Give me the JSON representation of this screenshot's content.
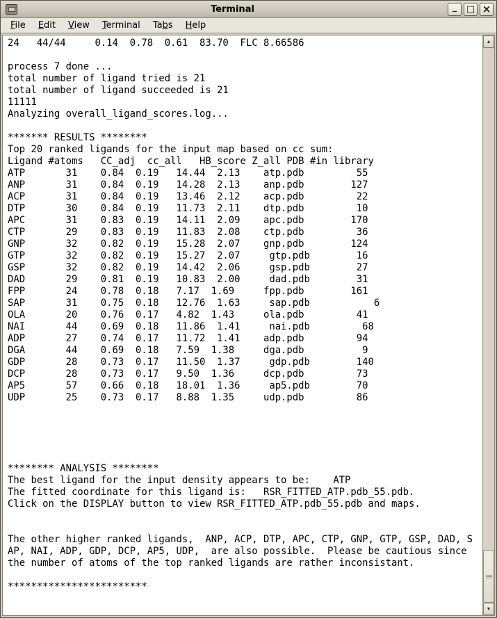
{
  "window": {
    "title": "Terminal",
    "controls": [
      {
        "name": "minimize",
        "glyph": "_"
      },
      {
        "name": "maximize",
        "glyph": "□"
      },
      {
        "name": "close",
        "glyph": "×"
      }
    ]
  },
  "menubar": {
    "items": [
      {
        "label": "File",
        "u": 0
      },
      {
        "label": "Edit",
        "u": 0
      },
      {
        "label": "View",
        "u": 0
      },
      {
        "label": "Terminal",
        "u": 0
      },
      {
        "label": "Tabs",
        "u": 2
      },
      {
        "label": "Help",
        "u": 0
      }
    ]
  },
  "scrollbar": {
    "up_glyph": "▲",
    "down_glyph": "▼"
  },
  "colors": {
    "titlebar_bg": "#c9c4b8",
    "menubar_bg": "#e8e5dc",
    "terminal_bg": "#ffffff",
    "terminal_fg": "#000000",
    "chrome": "#d0cbbf"
  },
  "terminal": {
    "lines": [
      "24   44/44     0.14  0.78  0.61  83.70  FLC 8.66586",
      "",
      "process 7 done ...",
      "total number of ligand tried is 21",
      "total number of ligand succeeded is 21",
      "11111",
      "Analyzing overall_ligand_scores.log...",
      "",
      "******* RESULTS ********",
      "Top 20 ranked ligands for the input map based on cc sum:",
      "Ligand #atoms   CC_adj  cc_all   HB_score Z_all PDB #in library",
      "ATP       31    0.84  0.19   14.44  2.13    atp.pdb         55",
      "ANP       31    0.84  0.19   14.28  2.13    anp.pdb        127",
      "ACP       31    0.84  0.19   13.46  2.12    acp.pdb         22",
      "DTP       30    0.84  0.19   11.73  2.11    dtp.pdb         10",
      "APC       31    0.83  0.19   14.11  2.09    apc.pdb        170",
      "CTP       29    0.83  0.19   11.83  2.08    ctp.pdb         36",
      "GNP       32    0.82  0.19   15.28  2.07    gnp.pdb        124",
      "GTP       32    0.82  0.19   15.27  2.07     gtp.pdb        16",
      "GSP       32    0.82  0.19   14.42  2.06     gsp.pdb        27",
      "DAD       29    0.81  0.19   10.83  2.00     dad.pdb        31",
      "FPP       24    0.78  0.18   7.17  1.69     fpp.pdb        161",
      "SAP       31    0.75  0.18   12.76  1.63     sap.pdb           6",
      "OLA       20    0.76  0.17   4.82  1.43     ola.pdb         41",
      "NAI       44    0.69  0.18   11.86  1.41     nai.pdb         68",
      "ADP       27    0.74  0.17   11.72  1.41    adp.pdb         94",
      "DGA       44    0.69  0.18   7.59  1.38     dga.pdb          9",
      "GDP       28    0.73  0.17   11.50  1.37     gdp.pdb        140",
      "DCP       28    0.73  0.17   9.50  1.36     dcp.pdb         73",
      "AP5       57    0.66  0.18   18.01  1.36     ap5.pdb        70",
      "UDP       25    0.73  0.17   8.88  1.35     udp.pdb         86",
      "",
      "",
      "",
      "",
      "",
      "******** ANALYSIS ********",
      "The best ligand for the input density appears to be:    ATP",
      "The fitted coordinate for this ligand is:   RSR_FITTED_ATP.pdb_55.pdb.",
      "Click on the DISPLAY button to view RSR_FITTED_ATP.pdb_55.pdb and maps.",
      "",
      "",
      "The other higher ranked ligands,  ANP, ACP, DTP, APC, CTP, GNP, GTP, GSP, DAD, S",
      "AP, NAI, ADP, GDP, DCP, AP5, UDP,  are also possible.  Please be cautious since",
      "the number of atoms of the top ranked ligands are rather inconsistant.",
      "",
      "************************"
    ]
  },
  "results_table": {
    "title": "Top 20 ranked ligands for the input map based on cc sum:",
    "headers": [
      "Ligand",
      "#atoms",
      "CC_adj",
      "cc_all",
      "HB_score",
      "Z_all",
      "PDB",
      "#in library"
    ],
    "rows": [
      [
        "ATP",
        31,
        0.84,
        0.19,
        14.44,
        2.13,
        "atp.pdb",
        55
      ],
      [
        "ANP",
        31,
        0.84,
        0.19,
        14.28,
        2.13,
        "anp.pdb",
        127
      ],
      [
        "ACP",
        31,
        0.84,
        0.19,
        13.46,
        2.12,
        "acp.pdb",
        22
      ],
      [
        "DTP",
        30,
        0.84,
        0.19,
        11.73,
        2.11,
        "dtp.pdb",
        10
      ],
      [
        "APC",
        31,
        0.83,
        0.19,
        14.11,
        2.09,
        "apc.pdb",
        170
      ],
      [
        "CTP",
        29,
        0.83,
        0.19,
        11.83,
        2.08,
        "ctp.pdb",
        36
      ],
      [
        "GNP",
        32,
        0.82,
        0.19,
        15.28,
        2.07,
        "gnp.pdb",
        124
      ],
      [
        "GTP",
        32,
        0.82,
        0.19,
        15.27,
        2.07,
        "gtp.pdb",
        16
      ],
      [
        "GSP",
        32,
        0.82,
        0.19,
        14.42,
        2.06,
        "gsp.pdb",
        27
      ],
      [
        "DAD",
        29,
        0.81,
        0.19,
        10.83,
        2.0,
        "dad.pdb",
        31
      ],
      [
        "FPP",
        24,
        0.78,
        0.18,
        7.17,
        1.69,
        "fpp.pdb",
        161
      ],
      [
        "SAP",
        31,
        0.75,
        0.18,
        12.76,
        1.63,
        "sap.pdb",
        6
      ],
      [
        "OLA",
        20,
        0.76,
        0.17,
        4.82,
        1.43,
        "ola.pdb",
        41
      ],
      [
        "NAI",
        44,
        0.69,
        0.18,
        11.86,
        1.41,
        "nai.pdb",
        68
      ],
      [
        "ADP",
        27,
        0.74,
        0.17,
        11.72,
        1.41,
        "adp.pdb",
        94
      ],
      [
        "DGA",
        44,
        0.69,
        0.18,
        7.59,
        1.38,
        "dga.pdb",
        9
      ],
      [
        "GDP",
        28,
        0.73,
        0.17,
        11.5,
        1.37,
        "gdp.pdb",
        140
      ],
      [
        "DCP",
        28,
        0.73,
        0.17,
        9.5,
        1.36,
        "dcp.pdb",
        73
      ],
      [
        "AP5",
        57,
        0.66,
        0.18,
        18.01,
        1.36,
        "ap5.pdb",
        70
      ],
      [
        "UDP",
        25,
        0.73,
        0.17,
        8.88,
        1.35,
        "udp.pdb",
        86
      ]
    ]
  },
  "analysis": {
    "best_ligand": "ATP",
    "fitted_coordinate": "RSR_FITTED_ATP.pdb_55.pdb",
    "ligands_tried": 21,
    "ligands_succeeded": 21
  }
}
